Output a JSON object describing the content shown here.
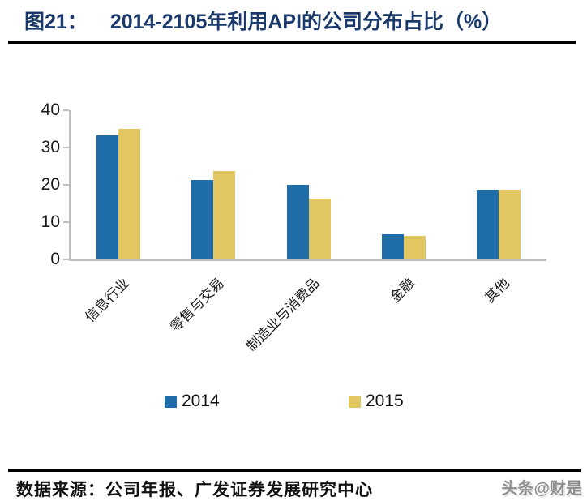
{
  "header": {
    "title_prefix": "图21：",
    "title_main": "2014-2105年利用API的公司分布占比（%）"
  },
  "footer": {
    "source_text": "数据来源：公司年报、广发证券发展研究中心",
    "watermark_text": "头条@财是"
  },
  "colors": {
    "title": "#1b3a6b",
    "rule": "#000000",
    "axis": "#bfbfbf",
    "series_2014": "#1f6da8",
    "series_2015": "#e2c662",
    "watermark": "#8f8f8f"
  },
  "chart_data": {
    "type": "bar",
    "title": "2014-2105年利用API的公司分布占比（%）",
    "categories": [
      "信息行业",
      "零售与交易",
      "制造业与消费品",
      "金融",
      "其他"
    ],
    "series": [
      {
        "name": "2014",
        "color": "#1f6da8",
        "values": [
          33.3,
          21.3,
          20.0,
          6.7,
          18.7
        ]
      },
      {
        "name": "2015",
        "color": "#e2c662",
        "values": [
          35.0,
          23.8,
          16.3,
          6.3,
          18.8
        ]
      }
    ],
    "xlabel": "",
    "ylabel": "",
    "ylim": [
      0,
      40
    ],
    "yticks": [
      0,
      10,
      20,
      30,
      40
    ],
    "grid": false,
    "legend_position": "bottom",
    "x_tick_rotation": 45
  }
}
